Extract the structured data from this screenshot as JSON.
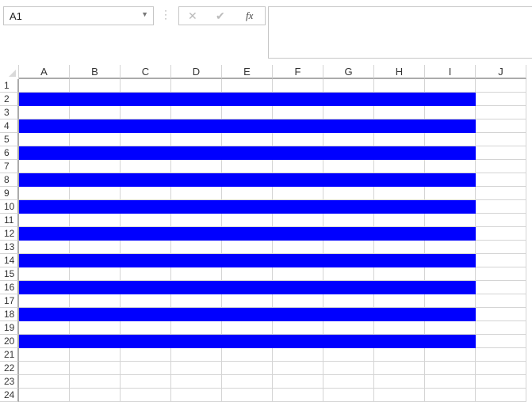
{
  "name_box": {
    "value": "A1"
  },
  "formula_bar": {
    "cancel_icon": "x-icon",
    "enter_icon": "check-icon",
    "function_label": "fx",
    "value": ""
  },
  "columns": [
    "A",
    "B",
    "C",
    "D",
    "E",
    "F",
    "G",
    "H",
    "I",
    "J"
  ],
  "rows": [
    "1",
    "2",
    "3",
    "4",
    "5",
    "6",
    "7",
    "8",
    "9",
    "10",
    "11",
    "12",
    "13",
    "14",
    "15",
    "16",
    "17",
    "18",
    "19",
    "20",
    "21",
    "22",
    "23",
    "24"
  ],
  "fill": {
    "color": "#0000ff",
    "rows": [
      2,
      4,
      6,
      8,
      10,
      12,
      14,
      16,
      18,
      20
    ],
    "columns": [
      "A",
      "B",
      "C",
      "D",
      "E",
      "F",
      "G",
      "H",
      "I"
    ]
  }
}
